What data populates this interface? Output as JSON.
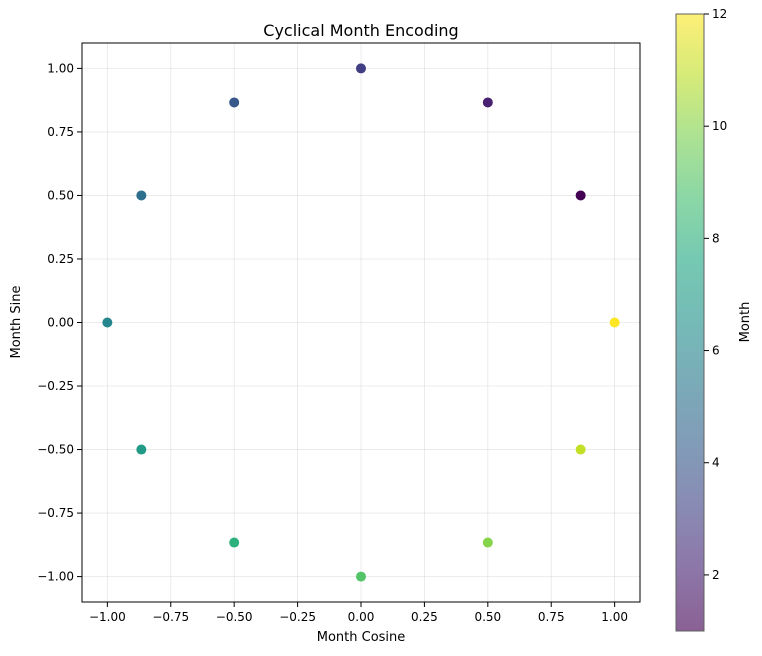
{
  "chart_data": {
    "type": "scatter",
    "title": "Cyclical Month Encoding",
    "xlabel": "Month Cosine",
    "ylabel": "Month Sine",
    "xlim": [
      -1.1,
      1.1
    ],
    "ylim": [
      -1.1,
      1.1
    ],
    "xticks": [
      -1.0,
      -0.75,
      -0.5,
      -0.25,
      0.0,
      0.25,
      0.5,
      0.75,
      1.0
    ],
    "xtick_labels": [
      "−1.00",
      "−0.75",
      "−0.50",
      "−0.25",
      "0.00",
      "0.25",
      "0.50",
      "0.75",
      "1.00"
    ],
    "yticks": [
      1.0,
      0.75,
      0.5,
      0.25,
      0.0,
      -0.25,
      -0.5,
      -0.75,
      -1.0
    ],
    "ytick_labels": [
      "1.00",
      "0.75",
      "0.50",
      "0.25",
      "0.00",
      "−0.25",
      "−0.50",
      "−0.75",
      "−1.00"
    ],
    "grid": true,
    "points": [
      {
        "x": 0.866,
        "y": 0.5,
        "month": 1
      },
      {
        "x": 0.5,
        "y": 0.866,
        "month": 2
      },
      {
        "x": 0.0,
        "y": 1.0,
        "month": 3
      },
      {
        "x": -0.5,
        "y": 0.866,
        "month": 4
      },
      {
        "x": -0.866,
        "y": 0.5,
        "month": 5
      },
      {
        "x": -1.0,
        "y": 0.0,
        "month": 6
      },
      {
        "x": -0.866,
        "y": -0.5,
        "month": 7
      },
      {
        "x": -0.5,
        "y": -0.866,
        "month": 8
      },
      {
        "x": 0.0,
        "y": -1.0,
        "month": 9
      },
      {
        "x": 0.5,
        "y": -0.866,
        "month": 10
      },
      {
        "x": 0.866,
        "y": -0.5,
        "month": 11
      },
      {
        "x": 1.0,
        "y": 0.0,
        "month": 12
      }
    ],
    "colorbar": {
      "label": "Month",
      "colormap": "viridis",
      "range": [
        1,
        12
      ],
      "ticks": [
        2,
        4,
        6,
        8,
        10,
        12
      ],
      "tick_labels": [
        "2",
        "4",
        "6",
        "8",
        "10",
        "12"
      ]
    }
  }
}
